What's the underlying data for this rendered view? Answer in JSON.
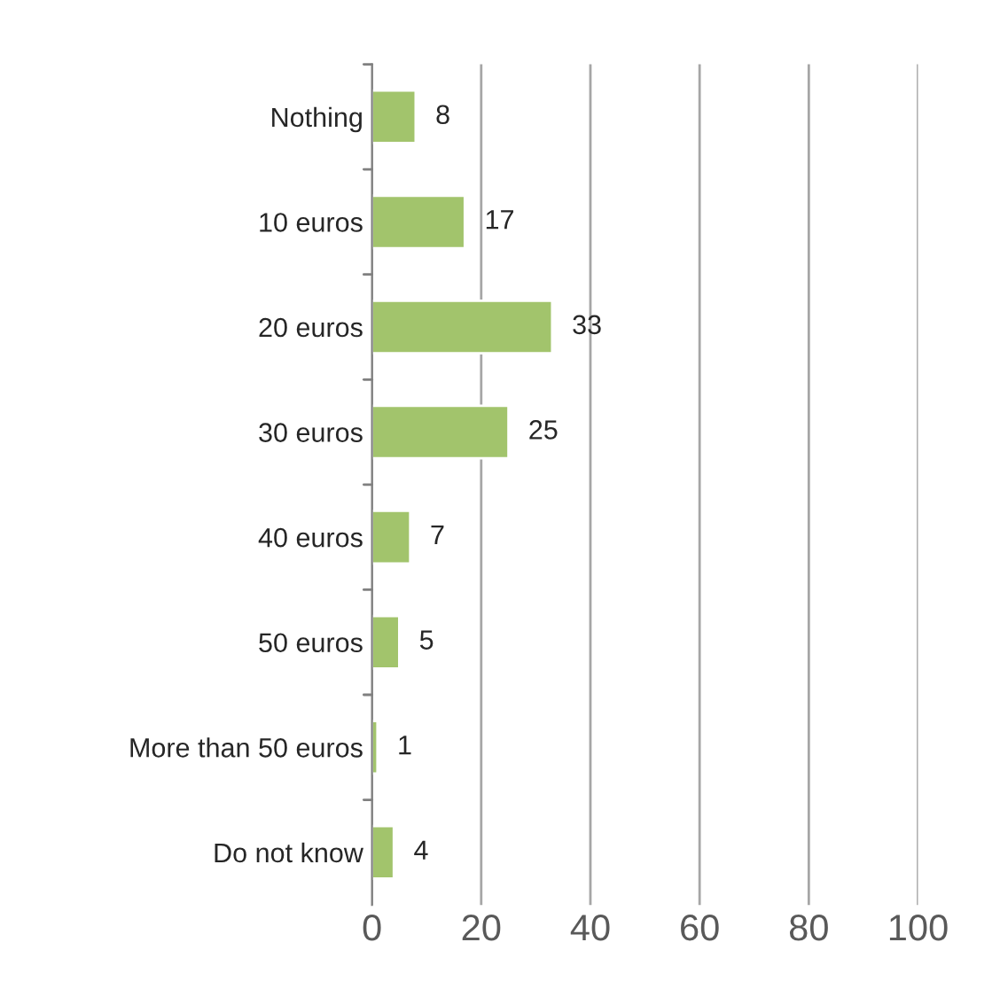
{
  "chart_data": {
    "type": "bar",
    "orientation": "horizontal",
    "categories": [
      "Nothing",
      "10 euros",
      "20 euros",
      "30 euros",
      "40 euros",
      "50 euros",
      "More than 50 euros",
      "Do not know"
    ],
    "values": [
      8,
      17,
      33,
      25,
      7,
      5,
      1,
      4
    ],
    "color": "#a2c46c",
    "xlim": [
      0,
      100
    ],
    "xticks": [
      0,
      20,
      40,
      60,
      80,
      100
    ],
    "grid": "x",
    "data_labels": true,
    "legend": false
  }
}
